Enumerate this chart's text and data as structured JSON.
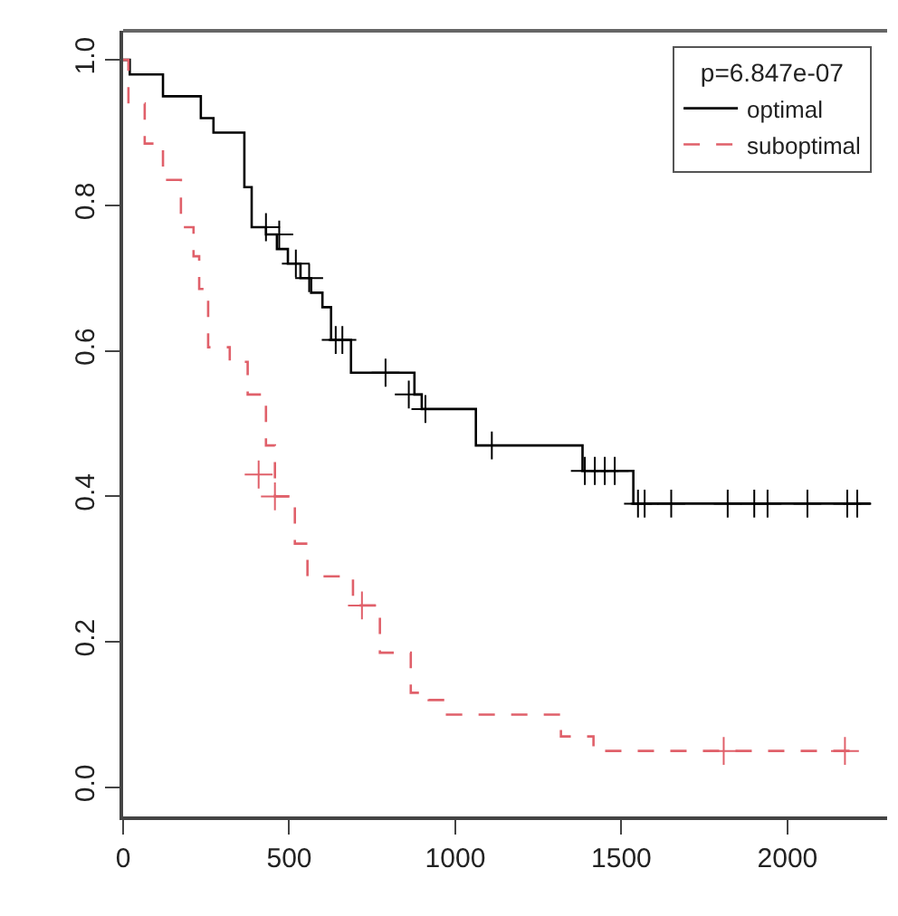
{
  "chart_data": {
    "type": "step",
    "legend_title": "p=6.847e-07",
    "legend": "top right",
    "grid": false,
    "xlim": [
      0,
      2300
    ],
    "xticks": [
      0,
      500,
      1000,
      1500,
      2000
    ],
    "ylim": [
      -0.04,
      1.04
    ],
    "yticks": [
      {
        "value": 0,
        "label": "0.0"
      },
      0.2,
      0.4,
      0.6,
      0.8,
      {
        "value": 1,
        "label": "1.0"
      }
    ],
    "series": [
      {
        "name": "optimal",
        "color": "#000000",
        "line_style": "solid",
        "x": [
          0,
          20,
          120,
          234,
          272,
          365,
          387,
          430,
          463,
          496,
          534,
          566,
          600,
          626,
          686,
          877,
          899,
          1062,
          1383,
          1536,
          2250
        ],
        "values": [
          1,
          0.98,
          0.95,
          0.92,
          0.9,
          0.825,
          0.77,
          0.76,
          0.74,
          0.72,
          0.7,
          0.68,
          0.66,
          0.615,
          0.57,
          0.54,
          0.52,
          0.47,
          0.435,
          0.39,
          0.39
        ]
      },
      {
        "name": "suboptimal",
        "color": "#e0606a",
        "line_style": "dashed",
        "x": [
          0,
          16,
          65,
          120,
          174,
          212,
          229,
          256,
          321,
          375,
          430,
          457,
          517,
          555,
          692,
          773,
          866,
          920,
          975,
          1318,
          1416,
          2190
        ],
        "values": [
          1,
          0.94,
          0.885,
          0.835,
          0.77,
          0.73,
          0.685,
          0.605,
          0.585,
          0.54,
          0.47,
          0.4,
          0.335,
          0.29,
          0.25,
          0.185,
          0.13,
          0.12,
          0.1,
          0.07,
          0.05,
          0.05
        ]
      },
      {
        "type": "scatter",
        "marker": "cross",
        "color": "#000000",
        "x": [
          430,
          470,
          520,
          560,
          640,
          660,
          790,
          860,
          910,
          1110,
          1390,
          1420,
          1450,
          1480,
          1550,
          1570,
          1650,
          1820,
          1900,
          1940,
          2060,
          2180,
          2210
        ],
        "values": [
          0.77,
          0.76,
          0.72,
          0.7,
          0.615,
          0.615,
          0.57,
          0.54,
          0.52,
          0.47,
          0.435,
          0.435,
          0.435,
          0.435,
          0.39,
          0.39,
          0.39,
          0.39,
          0.39,
          0.39,
          0.39,
          0.39,
          0.39
        ]
      },
      {
        "type": "scatter",
        "marker": "cross",
        "color": "#e0606a",
        "x": [
          408,
          457,
          719,
          1808,
          2173
        ],
        "values": [
          0.43,
          0.4,
          0.25,
          0.05,
          0.05
        ]
      }
    ]
  }
}
